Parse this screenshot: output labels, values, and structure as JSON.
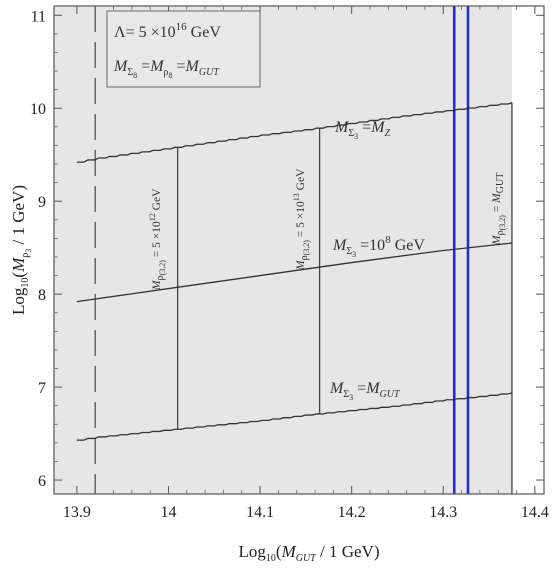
{
  "chart_data": {
    "type": "line",
    "title": "",
    "xlabel": {
      "pre": "Log",
      "sub10": "10",
      "open": "(",
      "M": "M",
      "msub": "GUT",
      "rest": " / 1 GeV)"
    },
    "ylabel": {
      "pre": "Log",
      "sub10": "10",
      "open": "(",
      "M": "M",
      "msub": "ρ",
      "msubsub": "3",
      "rest": " / 1 GeV)"
    },
    "xlim": [
      13.875,
      14.41
    ],
    "ylim": [
      5.85,
      11.1
    ],
    "xticks": [
      {
        "v": 13.9,
        "label": "13.9"
      },
      {
        "v": 14.0,
        "label": "14"
      },
      {
        "v": 14.1,
        "label": "14.1"
      },
      {
        "v": 14.2,
        "label": "14.2"
      },
      {
        "v": 14.3,
        "label": "14.3"
      },
      {
        "v": 14.4,
        "label": "14.4"
      }
    ],
    "yticks": [
      {
        "v": 6,
        "label": "6"
      },
      {
        "v": 7,
        "label": "7"
      },
      {
        "v": 8,
        "label": "8"
      },
      {
        "v": 9,
        "label": "9"
      },
      {
        "v": 10,
        "label": "10"
      },
      {
        "v": 11,
        "label": "11"
      }
    ],
    "grid": false,
    "shaded_region": {
      "x": [
        13.875,
        14.375
      ],
      "y": [
        5.85,
        11.1
      ],
      "color": "#e6e6e6"
    },
    "legend_box": {
      "line1": "Λ= 5 ×10",
      "line1_sup": "16",
      "line1_rest": " GeV",
      "line2": [
        {
          "M": "M",
          "sub": "Σ",
          "subsub": "8"
        },
        {
          "sep": " ="
        },
        {
          "M": "M",
          "sub": "ρ",
          "subsub": "8"
        },
        {
          "sep": " ="
        },
        {
          "M": "M",
          "sub": "GUT"
        }
      ]
    },
    "series": [
      {
        "x": [
          13.9,
          13.92,
          14.0,
          14.05,
          14.1,
          14.15,
          14.2,
          14.25,
          14.3,
          14.35,
          14.375
        ],
        "y": [
          9.42,
          9.46,
          9.57,
          9.64,
          9.71,
          9.77,
          9.84,
          9.91,
          9.97,
          10.03,
          10.06
        ],
        "step": true,
        "label": {
          "M": "M",
          "sub": "Σ",
          "subsub": "3",
          "eq": " =",
          "rhs": "M",
          "rhs_sub": "Z",
          "rhs_sup": ""
        }
      },
      {
        "x": [
          13.9,
          14.0,
          14.1,
          14.2,
          14.3,
          14.375
        ],
        "y": [
          7.92,
          8.06,
          8.2,
          8.34,
          8.47,
          8.55
        ],
        "step": false,
        "label": {
          "M": "M",
          "sub": "Σ",
          "subsub": "3",
          "eq": " =10",
          "rhs": "",
          "rhs_sub": "",
          "rhs_sup": "8",
          "unit": " GeV"
        }
      },
      {
        "x": [
          13.9,
          13.92,
          14.0,
          14.05,
          14.1,
          14.15,
          14.2,
          14.25,
          14.3,
          14.35,
          14.375
        ],
        "y": [
          6.43,
          6.46,
          6.54,
          6.59,
          6.64,
          6.7,
          6.75,
          6.8,
          6.86,
          6.91,
          6.94
        ],
        "step": true,
        "label": {
          "M": "M",
          "sub": "Σ",
          "subsub": "3",
          "eq": " =",
          "rhs": "M",
          "rhs_sub": "GUT",
          "rhs_sup": ""
        }
      }
    ],
    "vertical_lines": [
      {
        "x": 13.92,
        "ymin": 5.85,
        "ymax": 11.1,
        "style": "dashed",
        "color": "#555555"
      },
      {
        "x": 14.01,
        "ymin": 6.54,
        "ymax": 9.58,
        "style": "solid",
        "color": "#444444",
        "label": {
          "M": "M",
          "sub": "ρ",
          "subsub": "(3,2)",
          "eq": " = 5 ×10",
          "sup": "12",
          "unit": " GeV"
        }
      },
      {
        "x": 14.165,
        "ymin": 6.71,
        "ymax": 9.78,
        "style": "solid",
        "color": "#444444",
        "label": {
          "M": "M",
          "sub": "ρ",
          "subsub": "(3,2)",
          "eq": " = 5 ×10",
          "sup": "13",
          "unit": " GeV"
        }
      },
      {
        "x": 14.375,
        "ymin": 5.85,
        "ymax": 10.06,
        "style": "solid",
        "color": "#444444",
        "label": {
          "M": "M",
          "sub": "ρ",
          "subsub": "(3,2)",
          "eq": " = ",
          "M2": "M",
          "sub2": "GUT"
        }
      },
      {
        "x": 14.312,
        "ymin": 5.85,
        "ymax": 11.1,
        "style": "solid",
        "color": "#1f2fcf"
      },
      {
        "x": 14.327,
        "ymin": 5.85,
        "ymax": 11.1,
        "style": "solid",
        "color": "#1f2fcf"
      }
    ]
  }
}
